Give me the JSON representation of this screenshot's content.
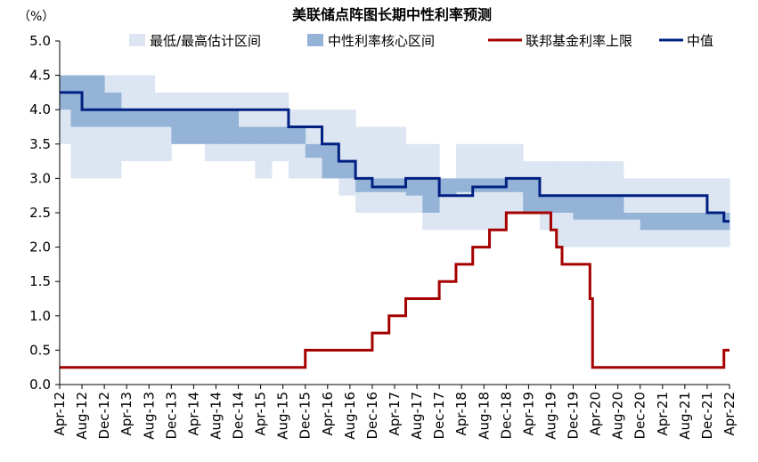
{
  "chart_data": {
    "type": "line",
    "title": "美联储点阵图长期中性利率预测",
    "y_unit_label": "（%）",
    "ylim": [
      0,
      5
    ],
    "y_ticks": [
      "0.0",
      "0.5",
      "1.0",
      "1.5",
      "2.0",
      "2.5",
      "3.0",
      "3.5",
      "4.0",
      "4.5",
      "5.0"
    ],
    "x_tick_labels": [
      "Apr-12",
      "Aug-12",
      "Dec-12",
      "Apr-13",
      "Aug-13",
      "Dec-13",
      "Apr-14",
      "Aug-14",
      "Dec-14",
      "Apr-15",
      "Aug-15",
      "Dec-15",
      "Apr-16",
      "Aug-16",
      "Dec-16",
      "Apr-17",
      "Aug-17",
      "Dec-17",
      "Apr-18",
      "Aug-18",
      "Dec-18",
      "Apr-19",
      "Aug-19",
      "Dec-19",
      "Apr-20",
      "Aug-20",
      "Dec-20",
      "Apr-21",
      "Aug-21",
      "Dec-21",
      "Apr-22"
    ],
    "legend_position": "top",
    "colors": {
      "range": "#dce6f2",
      "central_tendency": "#95b3d7",
      "fed_funds": "#a50000",
      "median": "#002082"
    },
    "series": [
      {
        "name": "最低/最高估计区间",
        "kind": "band",
        "segments": [
          {
            "start": "2012-01",
            "end": "2012-06",
            "low": 3.5,
            "high": 4.5
          },
          {
            "start": "2012-06",
            "end": "2012-09",
            "low": 3.0,
            "high": 4.5
          },
          {
            "start": "2012-09",
            "end": "2012-12",
            "low": 3.0,
            "high": 4.5
          },
          {
            "start": "2012-12",
            "end": "2013-03",
            "low": 3.0,
            "high": 4.5
          },
          {
            "start": "2013-03",
            "end": "2013-06",
            "low": 3.25,
            "high": 4.5
          },
          {
            "start": "2013-06",
            "end": "2013-09",
            "low": 3.25,
            "high": 4.5
          },
          {
            "start": "2013-09",
            "end": "2013-12",
            "low": 3.25,
            "high": 4.25
          },
          {
            "start": "2013-12",
            "end": "2014-03",
            "low": 3.5,
            "high": 4.25
          },
          {
            "start": "2014-03",
            "end": "2014-06",
            "low": 3.5,
            "high": 4.25
          },
          {
            "start": "2014-06",
            "end": "2014-09",
            "low": 3.25,
            "high": 4.25
          },
          {
            "start": "2014-09",
            "end": "2014-12",
            "low": 3.25,
            "high": 4.25
          },
          {
            "start": "2014-12",
            "end": "2015-03",
            "low": 3.25,
            "high": 4.25
          },
          {
            "start": "2015-03",
            "end": "2015-06",
            "low": 3.0,
            "high": 4.25
          },
          {
            "start": "2015-06",
            "end": "2015-09",
            "low": 3.25,
            "high": 4.25
          },
          {
            "start": "2015-09",
            "end": "2015-12",
            "low": 3.0,
            "high": 4.0
          },
          {
            "start": "2015-12",
            "end": "2016-03",
            "low": 3.0,
            "high": 4.0
          },
          {
            "start": "2016-03",
            "end": "2016-06",
            "low": 3.0,
            "high": 4.0
          },
          {
            "start": "2016-06",
            "end": "2016-09",
            "low": 2.75,
            "high": 4.0
          },
          {
            "start": "2016-09",
            "end": "2016-12",
            "low": 2.5,
            "high": 3.75
          },
          {
            "start": "2016-12",
            "end": "2017-03",
            "low": 2.5,
            "high": 3.75
          },
          {
            "start": "2017-03",
            "end": "2017-06",
            "low": 2.5,
            "high": 3.75
          },
          {
            "start": "2017-06",
            "end": "2017-09",
            "low": 2.5,
            "high": 3.5
          },
          {
            "start": "2017-09",
            "end": "2017-12",
            "low": 2.25,
            "high": 3.5
          },
          {
            "start": "2017-12",
            "end": "2018-03",
            "low": 2.25,
            "high": 3.0
          },
          {
            "start": "2018-03",
            "end": "2018-06",
            "low": 2.25,
            "high": 3.5
          },
          {
            "start": "2018-06",
            "end": "2018-09",
            "low": 2.25,
            "high": 3.5
          },
          {
            "start": "2018-09",
            "end": "2018-12",
            "low": 2.25,
            "high": 3.5
          },
          {
            "start": "2018-12",
            "end": "2019-03",
            "low": 2.5,
            "high": 3.5
          },
          {
            "start": "2019-03",
            "end": "2019-06",
            "low": 2.5,
            "high": 3.25
          },
          {
            "start": "2019-06",
            "end": "2019-09",
            "low": 2.25,
            "high": 3.25
          },
          {
            "start": "2019-09",
            "end": "2019-12",
            "low": 2.0,
            "high": 3.25
          },
          {
            "start": "2019-12",
            "end": "2020-03",
            "low": 2.0,
            "high": 3.25
          },
          {
            "start": "2020-03",
            "end": "2020-06",
            "low": 2.0,
            "high": 3.25
          },
          {
            "start": "2020-06",
            "end": "2020-09",
            "low": 2.0,
            "high": 3.25
          },
          {
            "start": "2020-09",
            "end": "2020-12",
            "low": 2.0,
            "high": 3.0
          },
          {
            "start": "2020-12",
            "end": "2021-03",
            "low": 2.0,
            "high": 3.0
          },
          {
            "start": "2021-03",
            "end": "2021-06",
            "low": 2.0,
            "high": 3.0
          },
          {
            "start": "2021-06",
            "end": "2021-09",
            "low": 2.0,
            "high": 3.0
          },
          {
            "start": "2021-09",
            "end": "2021-12",
            "low": 2.0,
            "high": 3.0
          },
          {
            "start": "2021-12",
            "end": "2022-03",
            "low": 2.0,
            "high": 3.0
          },
          {
            "start": "2022-03",
            "end": "2022-04",
            "low": 2.0,
            "high": 3.0
          }
        ]
      },
      {
        "name": "中性利率核心区间",
        "kind": "band",
        "segments": [
          {
            "start": "2012-01",
            "end": "2012-06",
            "low": 4.0,
            "high": 4.5
          },
          {
            "start": "2012-06",
            "end": "2012-09",
            "low": 3.75,
            "high": 4.5
          },
          {
            "start": "2012-09",
            "end": "2012-12",
            "low": 3.75,
            "high": 4.5
          },
          {
            "start": "2012-12",
            "end": "2013-03",
            "low": 3.75,
            "high": 4.25
          },
          {
            "start": "2013-03",
            "end": "2013-06",
            "low": 3.75,
            "high": 4.0
          },
          {
            "start": "2013-06",
            "end": "2013-09",
            "low": 3.75,
            "high": 4.0
          },
          {
            "start": "2013-09",
            "end": "2013-12",
            "low": 3.75,
            "high": 4.0
          },
          {
            "start": "2013-12",
            "end": "2014-03",
            "low": 3.5,
            "high": 4.0
          },
          {
            "start": "2014-03",
            "end": "2014-06",
            "low": 3.5,
            "high": 4.0
          },
          {
            "start": "2014-06",
            "end": "2014-09",
            "low": 3.5,
            "high": 4.0
          },
          {
            "start": "2014-09",
            "end": "2014-12",
            "low": 3.5,
            "high": 4.0
          },
          {
            "start": "2014-12",
            "end": "2015-03",
            "low": 3.5,
            "high": 3.75
          },
          {
            "start": "2015-03",
            "end": "2015-06",
            "low": 3.5,
            "high": 3.75
          },
          {
            "start": "2015-06",
            "end": "2015-09",
            "low": 3.5,
            "high": 3.75
          },
          {
            "start": "2015-09",
            "end": "2015-12",
            "low": 3.5,
            "high": 3.75
          },
          {
            "start": "2015-12",
            "end": "2016-03",
            "low": 3.3,
            "high": 3.5
          },
          {
            "start": "2016-03",
            "end": "2016-06",
            "low": 3.0,
            "high": 3.5
          },
          {
            "start": "2016-06",
            "end": "2016-09",
            "low": 3.0,
            "high": 3.25
          },
          {
            "start": "2016-09",
            "end": "2016-12",
            "low": 2.8,
            "high": 3.0
          },
          {
            "start": "2016-12",
            "end": "2017-03",
            "low": 2.8,
            "high": 3.0
          },
          {
            "start": "2017-03",
            "end": "2017-06",
            "low": 2.8,
            "high": 3.0
          },
          {
            "start": "2017-06",
            "end": "2017-09",
            "low": 2.75,
            "high": 3.0
          },
          {
            "start": "2017-09",
            "end": "2017-12",
            "low": 2.5,
            "high": 3.0
          },
          {
            "start": "2017-12",
            "end": "2018-03",
            "low": 2.75,
            "high": 3.0
          },
          {
            "start": "2018-03",
            "end": "2018-06",
            "low": 2.8,
            "high": 3.0
          },
          {
            "start": "2018-06",
            "end": "2018-09",
            "low": 2.8,
            "high": 3.0
          },
          {
            "start": "2018-09",
            "end": "2018-12",
            "low": 2.8,
            "high": 3.0
          },
          {
            "start": "2018-12",
            "end": "2019-03",
            "low": 2.8,
            "high": 3.0
          },
          {
            "start": "2019-03",
            "end": "2019-06",
            "low": 2.5,
            "high": 3.0
          },
          {
            "start": "2019-06",
            "end": "2019-09",
            "low": 2.5,
            "high": 2.75
          },
          {
            "start": "2019-09",
            "end": "2019-12",
            "low": 2.5,
            "high": 2.75
          },
          {
            "start": "2019-12",
            "end": "2020-03",
            "low": 2.4,
            "high": 2.75
          },
          {
            "start": "2020-03",
            "end": "2020-06",
            "low": 2.4,
            "high": 2.75
          },
          {
            "start": "2020-06",
            "end": "2020-09",
            "low": 2.4,
            "high": 2.75
          },
          {
            "start": "2020-09",
            "end": "2020-12",
            "low": 2.4,
            "high": 2.5
          },
          {
            "start": "2020-12",
            "end": "2021-03",
            "low": 2.25,
            "high": 2.5
          },
          {
            "start": "2021-03",
            "end": "2021-06",
            "low": 2.25,
            "high": 2.5
          },
          {
            "start": "2021-06",
            "end": "2021-09",
            "low": 2.25,
            "high": 2.5
          },
          {
            "start": "2021-09",
            "end": "2021-12",
            "low": 2.25,
            "high": 2.5
          },
          {
            "start": "2021-12",
            "end": "2022-03",
            "low": 2.25,
            "high": 2.5
          },
          {
            "start": "2022-03",
            "end": "2022-04",
            "low": 2.25,
            "high": 2.5
          }
        ]
      },
      {
        "name": "联邦基金利率上限",
        "kind": "step",
        "x": [
          "2012-01",
          "2015-12",
          "2016-12",
          "2017-03",
          "2017-06",
          "2017-12",
          "2018-03",
          "2018-06",
          "2018-09",
          "2018-12",
          "2019-08",
          "2019-09",
          "2019-10",
          "2020-03",
          "2020-03-15",
          "2022-03",
          "2022-04"
        ],
        "values": [
          0.25,
          0.5,
          0.75,
          1.0,
          1.25,
          1.5,
          1.75,
          2.0,
          2.25,
          2.5,
          2.25,
          2.0,
          1.75,
          1.25,
          0.25,
          0.5,
          0.5
        ]
      },
      {
        "name": "中值",
        "kind": "step",
        "x": [
          "2012-01",
          "2012-08",
          "2015-09",
          "2016-03",
          "2016-06",
          "2016-09",
          "2016-12",
          "2017-06",
          "2017-12",
          "2018-06",
          "2018-12",
          "2019-06",
          "2021-12",
          "2022-03",
          "2022-04"
        ],
        "values": [
          4.25,
          4.0,
          3.75,
          3.5,
          3.25,
          3.0,
          2.875,
          3.0,
          2.75,
          2.875,
          3.0,
          2.75,
          2.5,
          2.375,
          2.375
        ]
      }
    ]
  }
}
